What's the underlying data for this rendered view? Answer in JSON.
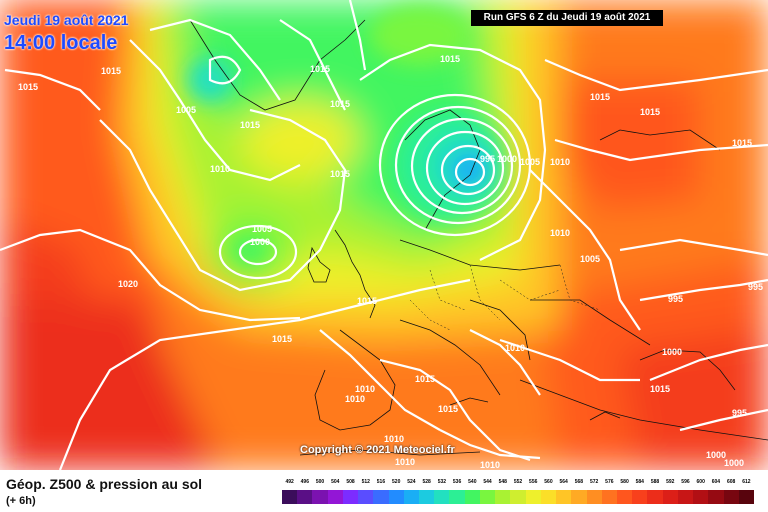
{
  "header": {
    "date": "Jeudi 19 août 2021",
    "time": "14:00 locale",
    "run": "Run GFS 6 Z du Jeudi 19 août 2021"
  },
  "copyright": "Copyright © 2021 Meteociel.fr",
  "footer": {
    "title": "Géop. Z500 & pression au sol",
    "subtitle": "(+ 6h)"
  },
  "legend": {
    "values": [
      "492",
      "496",
      "500",
      "504",
      "508",
      "512",
      "516",
      "520",
      "524",
      "528",
      "532",
      "536",
      "540",
      "544",
      "548",
      "552",
      "556",
      "560",
      "564",
      "568",
      "572",
      "576",
      "580",
      "584",
      "588",
      "592",
      "596",
      "600",
      "604",
      "608",
      "612"
    ],
    "colors": [
      "#3b0d5b",
      "#5a0f86",
      "#7b12b0",
      "#9316d6",
      "#7c2cff",
      "#5a4dff",
      "#3a6cff",
      "#228cff",
      "#1aaef5",
      "#1ccbe0",
      "#22e0c0",
      "#2cef95",
      "#42f561",
      "#79f63f",
      "#a9f233",
      "#cfee2f",
      "#eef02c",
      "#fbdf28",
      "#ffc526",
      "#ffaa24",
      "#ff8e22",
      "#ff7220",
      "#ff561e",
      "#f8401c",
      "#ec2d1a",
      "#dc1f18",
      "#c81616",
      "#b20f14",
      "#960a12",
      "#780610",
      "#58040d"
    ]
  },
  "pressure_labels": [
    "1015",
    "1010",
    "1015",
    "1015",
    "1005",
    "1015",
    "1015",
    "1015",
    "1010",
    "1010",
    "1015",
    "1015",
    "1005",
    "1000",
    "1020",
    "1015",
    "1015",
    "995",
    "995",
    "1000",
    "1005",
    "1010",
    "1015",
    "1015",
    "1010",
    "1010",
    "1005",
    "995",
    "1015",
    "1000",
    "995",
    "1000",
    "1000",
    "1015",
    "1010",
    "1010",
    "1010",
    "1010",
    "1015"
  ]
}
